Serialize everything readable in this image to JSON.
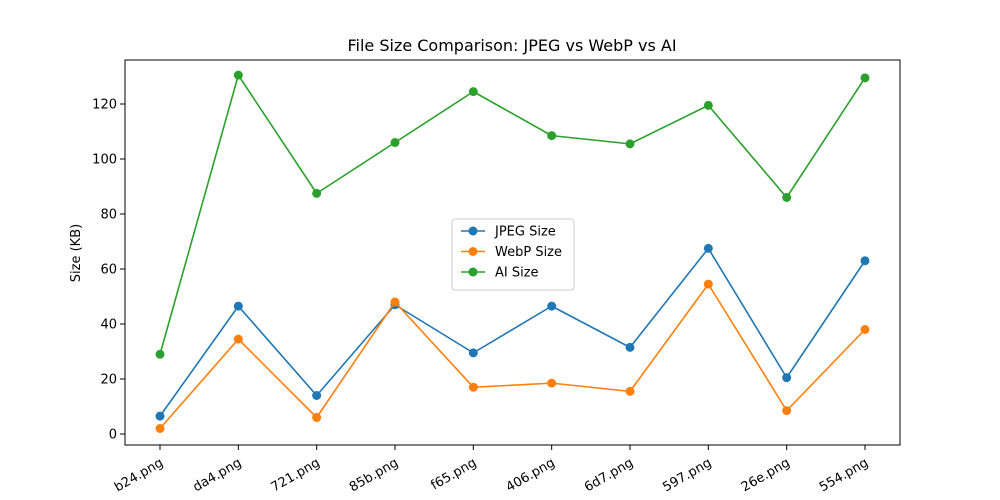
{
  "chart_data": {
    "type": "line",
    "title": "File Size Comparison: JPEG vs WebP vs AI",
    "xlabel": "",
    "ylabel": "Size (KB)",
    "ylim": [
      -4,
      136
    ],
    "yticks": [
      0,
      20,
      40,
      60,
      80,
      100,
      120
    ],
    "categories": [
      "b24.png",
      "da4.png",
      "721.png",
      "85b.png",
      "f65.png",
      "406.png",
      "6d7.png",
      "597.png",
      "26e.png",
      "554.png"
    ],
    "grid": false,
    "legend_position": "center",
    "series": [
      {
        "name": "JPEG Size",
        "color": "#1f77b4",
        "values": [
          6.5,
          46.5,
          14.0,
          47.0,
          29.5,
          46.5,
          31.5,
          67.5,
          20.5,
          63.0
        ]
      },
      {
        "name": "WebP Size",
        "color": "#ff7f0e",
        "values": [
          2.0,
          34.5,
          6.0,
          48.0,
          17.0,
          18.5,
          15.5,
          54.5,
          8.5,
          38.0
        ]
      },
      {
        "name": "AI Size",
        "color": "#2ca02c",
        "values": [
          29.0,
          130.5,
          87.5,
          106.0,
          124.5,
          108.5,
          105.5,
          119.5,
          86.0,
          129.5
        ]
      }
    ]
  }
}
